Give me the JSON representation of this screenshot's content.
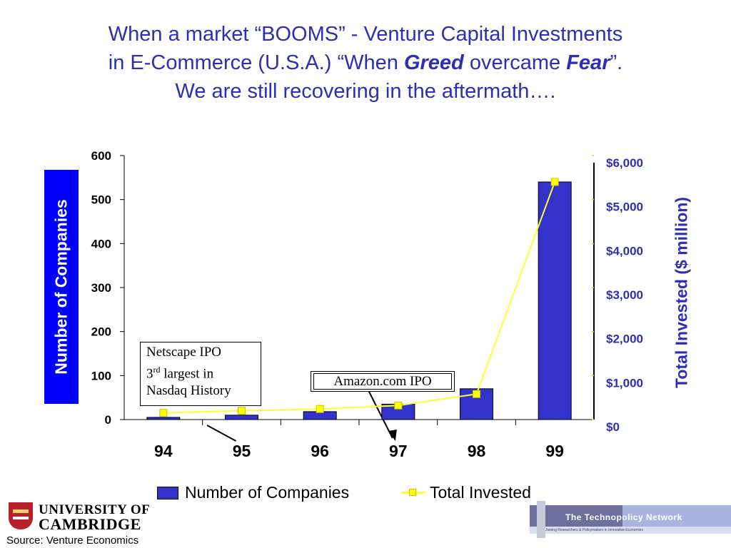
{
  "title": {
    "line1": "When a market “BOOMS” - Venture Capital Investments",
    "line2_a": "in E-Commerce (U.S.A.) “When ",
    "line2_greed": "Greed",
    "line2_b": " overcame ",
    "line2_fear": "Fear",
    "line2_c": "”.",
    "line3": "We are still recovering in the aftermath…."
  },
  "chart_data": {
    "type": "bar",
    "categories": [
      "94",
      "95",
      "96",
      "97",
      "98",
      "99"
    ],
    "series": [
      {
        "name": "Number of Companies",
        "type": "bar",
        "axis": "left",
        "color": "#3333cc",
        "values": [
          5,
          10,
          18,
          35,
          70,
          540
        ]
      },
      {
        "name": "Total Invested",
        "type": "line",
        "axis": "right",
        "color": "#ffff00",
        "values": [
          150,
          200,
          240,
          320,
          580,
          5400
        ]
      }
    ],
    "ylabel_left": "Number of Companies",
    "ylabel_right": "Total Invested ($ million)",
    "ylim_left": [
      0,
      600
    ],
    "yticks_left": [
      "0",
      "100",
      "200",
      "300",
      "400",
      "500",
      "600"
    ],
    "ylim_right": [
      0,
      6000
    ],
    "yticks_right": [
      "$0",
      "$1,000",
      "$2,000",
      "$3,000",
      "$4,000",
      "$5,000",
      "$6,000"
    ],
    "grid": false,
    "legend_position": "bottom",
    "annotations": [
      {
        "lines": [
          "Netscape IPO",
          "3rd largest in",
          "Nasdaq History"
        ],
        "category": "95"
      },
      {
        "lines": [
          "Amazon.com IPO"
        ],
        "category": "97"
      }
    ]
  },
  "legend": {
    "item1": "Number of Companies",
    "item2": "Total Invested"
  },
  "annotations": {
    "netscape_l1": "Netscape IPO",
    "netscape_l2_num": "3",
    "netscape_l2_sup": "rd",
    "netscape_l2_rest": " largest in",
    "netscape_l3": "Nasdaq History",
    "amazon": "Amazon.com IPO"
  },
  "footer": {
    "logo_line1": "UNIVERSITY OF",
    "logo_line2": "CAMBRIDGE",
    "source": "Source: Venture Economics",
    "network_name": "The Technopolicy Network",
    "network_tagline": "Joining Researchers & Policymakers in Innovative Economies"
  },
  "colors": {
    "title": "#2d2db5",
    "bar": "#3333cc",
    "line": "#ffff00",
    "left_label_bg": "#0000ff",
    "right_axis_text": "#2d2db5"
  }
}
